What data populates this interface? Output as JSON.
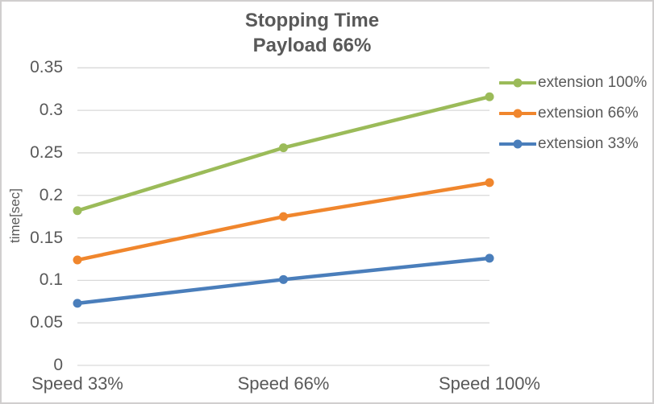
{
  "frame": {
    "background_color": "#FFFFFF",
    "border_color": "#D0CECE"
  },
  "chart_data": {
    "type": "line",
    "title": "Stopping Time",
    "subtitle": "Payload 66%",
    "xlabel": "",
    "ylabel": "time[sec]",
    "categories": [
      "Speed 33%",
      "Speed 66%",
      "Speed 100%"
    ],
    "series": [
      {
        "name": "extension 100%",
        "color": "#9BBB59",
        "values": [
          0.182,
          0.256,
          0.316
        ]
      },
      {
        "name": "extension 66%",
        "color": "#F0862D",
        "values": [
          0.124,
          0.175,
          0.215
        ]
      },
      {
        "name": "extension 33%",
        "color": "#4A7EBB",
        "values": [
          0.073,
          0.101,
          0.126
        ]
      }
    ],
    "ylim": [
      0,
      0.35
    ],
    "ytick_step": 0.05,
    "yticks": [
      0,
      0.05,
      0.1,
      0.15,
      0.2,
      0.25,
      0.3,
      0.35
    ],
    "ytick_labels": [
      "0",
      "0.05",
      "0.1",
      "0.15",
      "0.2",
      "0.25",
      "0.3",
      "0.35"
    ],
    "grid": true,
    "legend_position": "right",
    "marker": "circle",
    "text_color": "#595959",
    "grid_color": "#D9D9D9"
  }
}
